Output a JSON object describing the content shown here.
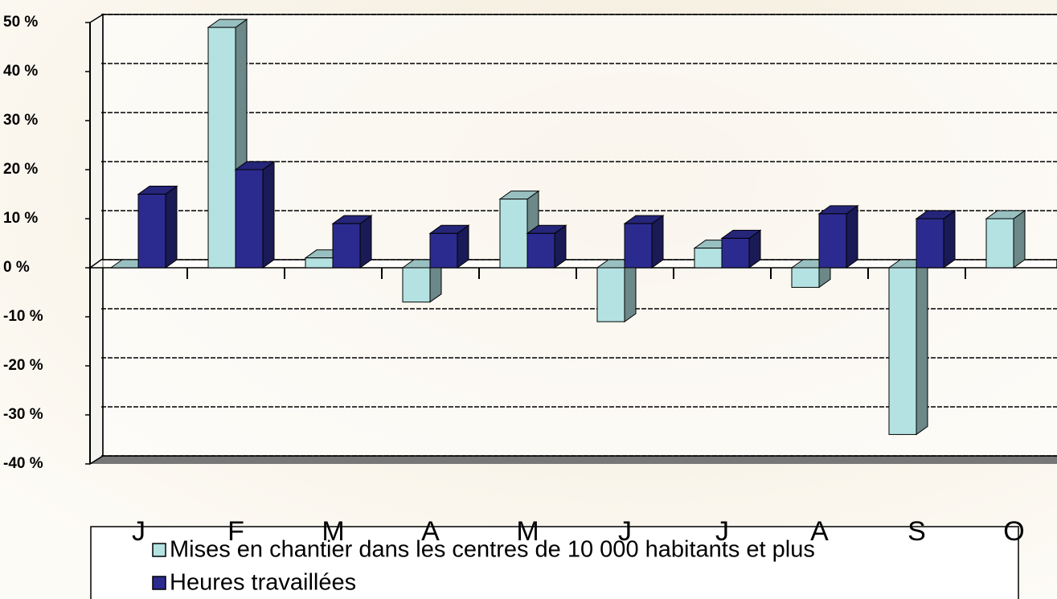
{
  "chart_data": {
    "type": "bar",
    "categories": [
      "J",
      "F",
      "M",
      "A",
      "M",
      "J",
      "J",
      "A",
      "S",
      "O"
    ],
    "series": [
      {
        "name": "Mises en chantier dans les centres de 10 000 habitants et plus",
        "color": "#b4e2e2",
        "values": [
          0,
          49,
          2,
          -7,
          14,
          -11,
          4,
          -4,
          -34,
          10
        ]
      },
      {
        "name": "Heures travaillées",
        "color": "#2b2b8f",
        "values": [
          15,
          20,
          9,
          7,
          7,
          9,
          6,
          11,
          10,
          null
        ]
      }
    ],
    "ylim": [
      -40,
      50
    ],
    "yticks": [
      {
        "value": -40,
        "label": "-40 %"
      },
      {
        "value": -30,
        "label": "-30 %"
      },
      {
        "value": -20,
        "label": "-20 %"
      },
      {
        "value": -10,
        "label": "-10 %"
      },
      {
        "value": 0,
        "label": "0 %"
      },
      {
        "value": 10,
        "label": "10 %"
      },
      {
        "value": 20,
        "label": "20 %"
      },
      {
        "value": 30,
        "label": "30 %"
      },
      {
        "value": 40,
        "label": "40 %"
      },
      {
        "value": 50,
        "label": "50 %"
      }
    ],
    "grid": true
  }
}
